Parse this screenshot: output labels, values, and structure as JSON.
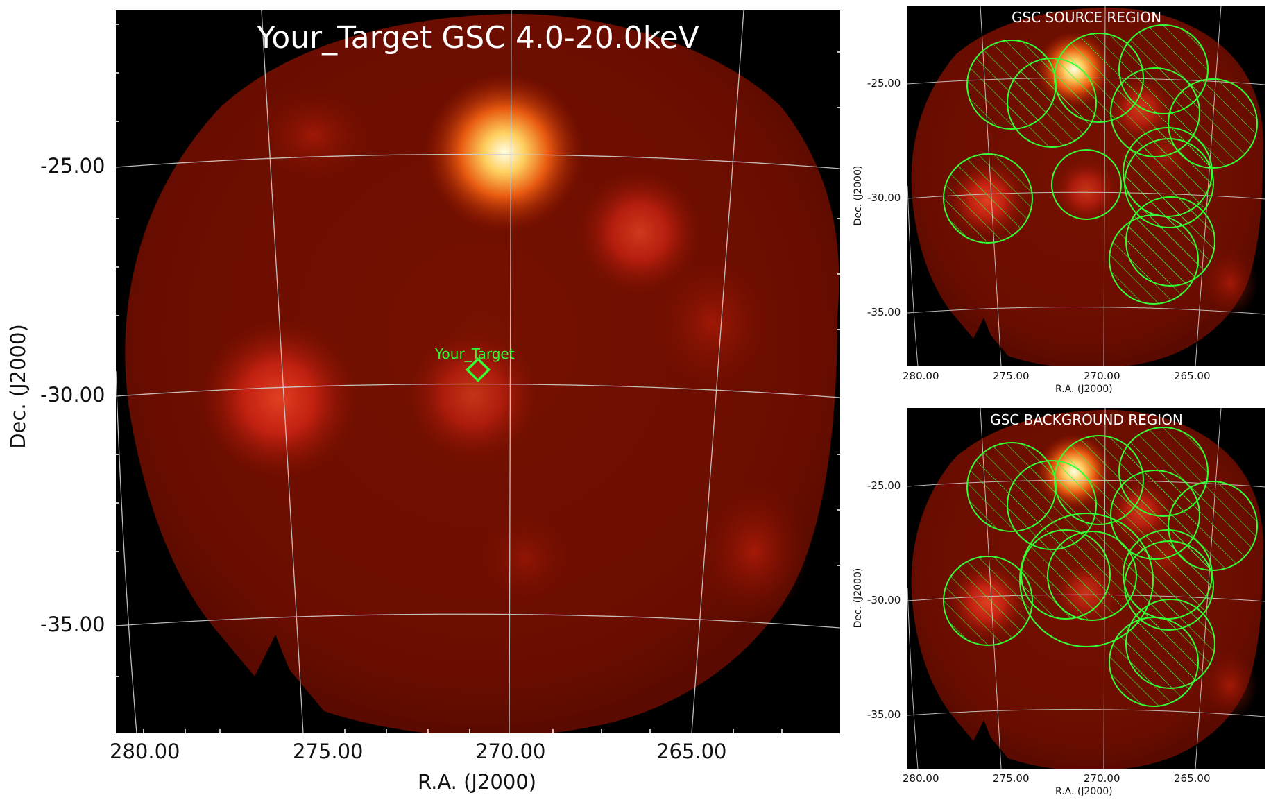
{
  "main_panel": {
    "title": "Your_Target GSC 4.0-20.0keV",
    "target_label": "Your_Target",
    "xlabel": "R.A. (J2000)",
    "ylabel": "Dec. (J2000)",
    "x_ticks": [
      "280.00",
      "275.00",
      "270.00",
      "265.00"
    ],
    "y_ticks": [
      "-25.00",
      "-30.00",
      "-35.00"
    ]
  },
  "source_panel": {
    "title": "GSC SOURCE REGION",
    "xlabel": "R.A. (J2000)",
    "ylabel": "Dec. (J2000)",
    "x_ticks": [
      "280.00",
      "275.00",
      "270.00",
      "265.00"
    ],
    "y_ticks": [
      "-25.00",
      "-30.00",
      "-35.00"
    ]
  },
  "background_panel": {
    "title": "GSC BACKGROUND REGION",
    "xlabel": "R.A. (J2000)",
    "ylabel": "Dec. (J2000)",
    "x_ticks": [
      "280.00",
      "275.00",
      "270.00",
      "265.00"
    ],
    "y_ticks": [
      "-25.00",
      "-30.00",
      "-35.00"
    ]
  },
  "colors": {
    "sky_base": "#6e0c00",
    "region_green": "#33ff33",
    "grid": "#cccccc",
    "background": "#000000"
  }
}
